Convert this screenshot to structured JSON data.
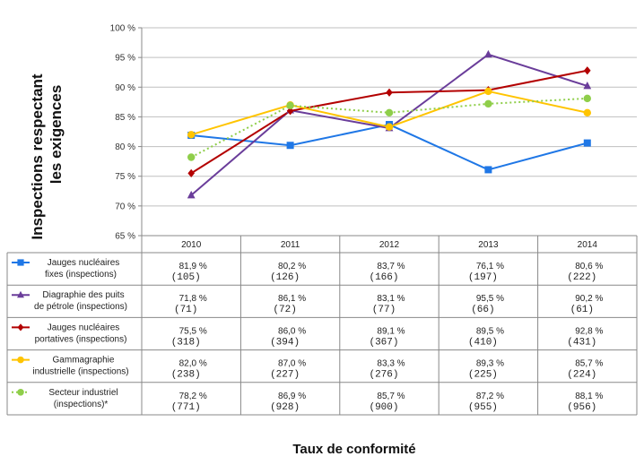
{
  "chart_data": {
    "type": "line",
    "xlabel": "Taux de conformité",
    "ylabel_lines": [
      "Inspections respectant",
      "les exigences"
    ],
    "ylim": [
      65,
      100
    ],
    "yticks": [
      65,
      70,
      75,
      80,
      85,
      90,
      95,
      100
    ],
    "ytick_labels": [
      "65 %",
      "70 %",
      "75 %",
      "80 %",
      "85 %",
      "90 %",
      "95 %",
      "100 %"
    ],
    "categories": [
      "2010",
      "2011",
      "2012",
      "2013",
      "2014"
    ],
    "grid": true,
    "legend": "table-left",
    "series": [
      {
        "name_lines": [
          "Jauges nucléaires",
          "fixes (inspections)"
        ],
        "color": "#1f77e6",
        "marker": "square",
        "dash": "solid",
        "values": [
          81.9,
          80.2,
          83.7,
          76.1,
          80.6
        ],
        "value_labels": [
          "81,9 %",
          "80,2 %",
          "83,7 %",
          "76,1 %",
          "80,6 %"
        ],
        "counts": [
          "(105)",
          "(126)",
          "(166)",
          "(197)",
          "(222)"
        ]
      },
      {
        "name_lines": [
          "Diagraphie des puits",
          "de pétrole (inspections)"
        ],
        "color": "#6a3d9a",
        "marker": "triangle",
        "dash": "solid",
        "values": [
          71.8,
          86.1,
          83.1,
          95.5,
          90.2
        ],
        "value_labels": [
          "71,8 %",
          "86,1 %",
          "83,1 %",
          "95,5 %",
          "90,2 %"
        ],
        "counts": [
          "(71)",
          "(72)",
          "(77)",
          "(66)",
          "(61)"
        ]
      },
      {
        "name_lines": [
          "Jauges nucléaires",
          "portatives (inspections)"
        ],
        "color": "#b30000",
        "marker": "diamond",
        "dash": "solid",
        "values": [
          75.5,
          86.0,
          89.1,
          89.5,
          92.8
        ],
        "value_labels": [
          "75,5 %",
          "86,0 %",
          "89,1 %",
          "89,5 %",
          "92,8 %"
        ],
        "counts": [
          "(318)",
          "(394)",
          "(367)",
          "(410)",
          "(431)"
        ]
      },
      {
        "name_lines": [
          "Gammagraphie",
          "industrielle (inspections)"
        ],
        "color": "#ffc400",
        "marker": "circle",
        "dash": "solid",
        "values": [
          82.0,
          87.0,
          83.3,
          89.3,
          85.7
        ],
        "value_labels": [
          "82,0 %",
          "87,0 %",
          "83,3 %",
          "89,3 %",
          "85,7 %"
        ],
        "counts": [
          "(238)",
          "(227)",
          "(276)",
          "(225)",
          "(224)"
        ]
      },
      {
        "name_lines": [
          "Secteur industriel",
          "(inspections)*"
        ],
        "color": "#8fce4a",
        "marker": "circle",
        "dash": "dotted",
        "values": [
          78.2,
          86.9,
          85.7,
          87.2,
          88.1
        ],
        "value_labels": [
          "78,2 %",
          "86,9 %",
          "85,7 %",
          "87,2 %",
          "88,1 %"
        ],
        "counts": [
          "(771)",
          "(928)",
          "(900)",
          "(955)",
          "(956)"
        ]
      }
    ]
  }
}
